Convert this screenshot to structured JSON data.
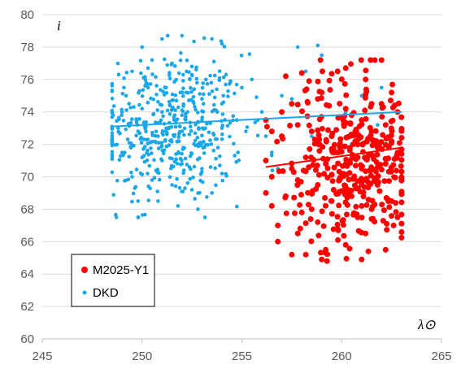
{
  "chart_data": {
    "type": "scatter",
    "xlabel": "λ⊙",
    "ylabel": "i",
    "xlim": [
      245,
      265
    ],
    "ylim": [
      60,
      80
    ],
    "x_ticks": [
      "245",
      "250",
      "255",
      "260",
      "265"
    ],
    "y_ticks": [
      "60",
      "62",
      "64",
      "66",
      "68",
      "70",
      "72",
      "74",
      "76",
      "78",
      "80"
    ],
    "grid": "horizontal",
    "legend_position": "bottom-left",
    "series": [
      {
        "name": "M2025-Y1",
        "color": "#ff0000",
        "marker": "circle-large",
        "x_range": [
          256,
          263
        ],
        "y_range": [
          64.8,
          77.2
        ],
        "center": [
          260.5,
          71.0
        ],
        "count": 420,
        "trend": {
          "x": [
            256.2,
            263.0
          ],
          "y": [
            70.6,
            71.8
          ]
        },
        "points": [
          [
            262.0,
            77.2
          ],
          [
            259.8,
            76.5
          ],
          [
            258.0,
            76.4
          ],
          [
            257.2,
            76.2
          ],
          [
            260.2,
            76.7
          ],
          [
            259.0,
            75.2
          ],
          [
            261.2,
            76.0
          ],
          [
            262.5,
            75.2
          ],
          [
            260.5,
            73.8
          ],
          [
            261.0,
            73.5
          ],
          [
            262.0,
            74.5
          ],
          [
            262.8,
            74.0
          ],
          [
            261.5,
            72.8
          ],
          [
            260.8,
            72.0
          ],
          [
            259.5,
            72.5
          ],
          [
            258.5,
            72.8
          ],
          [
            257.8,
            73.2
          ],
          [
            257.0,
            72.5
          ],
          [
            256.5,
            72.8
          ],
          [
            256.2,
            71.0
          ],
          [
            257.5,
            70.5
          ],
          [
            258.2,
            71.2
          ],
          [
            259.2,
            70.8
          ],
          [
            260.0,
            70.2
          ],
          [
            261.0,
            70.5
          ],
          [
            262.2,
            70.8
          ],
          [
            262.8,
            71.5
          ],
          [
            261.8,
            69.5
          ],
          [
            260.5,
            68.8
          ],
          [
            259.5,
            68.5
          ],
          [
            258.5,
            68.0
          ],
          [
            257.2,
            68.8
          ],
          [
            256.5,
            68.2
          ],
          [
            256.8,
            67.0
          ],
          [
            257.8,
            66.5
          ],
          [
            258.8,
            67.2
          ],
          [
            259.8,
            66.8
          ],
          [
            260.8,
            67.5
          ],
          [
            261.5,
            68.0
          ],
          [
            262.5,
            68.5
          ],
          [
            262.8,
            67.5
          ],
          [
            261.2,
            66.5
          ],
          [
            260.2,
            65.8
          ],
          [
            259.2,
            65.5
          ],
          [
            258.2,
            65.2
          ],
          [
            257.5,
            65.2
          ],
          [
            259.0,
            64.9
          ],
          [
            261.0,
            64.9
          ],
          [
            262.2,
            65.5
          ],
          [
            256.8,
            66.0
          ],
          [
            262.5,
            72.2
          ],
          [
            261.5,
            74.5
          ],
          [
            260.2,
            74.2
          ],
          [
            258.8,
            74.8
          ],
          [
            257.5,
            74.5
          ],
          [
            257.0,
            74.0
          ],
          [
            256.2,
            73.5
          ],
          [
            262.2,
            73.2
          ],
          [
            261.8,
            71.8
          ],
          [
            260.8,
            71.2
          ],
          [
            259.8,
            71.5
          ],
          [
            258.8,
            69.5
          ],
          [
            257.8,
            69.8
          ],
          [
            256.5,
            70.0
          ],
          [
            256.2,
            69.0
          ],
          [
            263.0,
            69.0
          ],
          [
            262.6,
            67.0
          ],
          [
            261.0,
            68.2
          ],
          [
            259.6,
            69.2
          ],
          [
            258.0,
            67.8
          ]
        ]
      },
      {
        "name": "DKD",
        "color": "#1aa7e8",
        "marker": "circle-small",
        "x_range": [
          248.5,
          263
        ],
        "y_range": [
          67.5,
          78.7
        ],
        "center": [
          251.5,
          73.0
        ],
        "count": 520,
        "trend": {
          "x": [
            248.5,
            263.0
          ],
          "y": [
            73.1,
            74.0
          ]
        },
        "points": [
          [
            250.0,
            78.0
          ],
          [
            251.0,
            78.5
          ],
          [
            252.0,
            78.7
          ],
          [
            253.5,
            78.5
          ],
          [
            254.0,
            78.2
          ],
          [
            249.5,
            76.5
          ],
          [
            250.5,
            77.2
          ],
          [
            251.5,
            77.0
          ],
          [
            252.5,
            76.8
          ],
          [
            253.2,
            76.0
          ],
          [
            249.2,
            75.0
          ],
          [
            250.2,
            75.8
          ],
          [
            251.2,
            75.5
          ],
          [
            252.2,
            75.2
          ],
          [
            253.0,
            74.8
          ],
          [
            254.0,
            74.5
          ],
          [
            255.0,
            75.5
          ],
          [
            249.0,
            74.0
          ],
          [
            250.0,
            74.2
          ],
          [
            251.0,
            74.0
          ],
          [
            252.0,
            73.8
          ],
          [
            253.0,
            73.5
          ],
          [
            254.0,
            73.0
          ],
          [
            255.2,
            72.8
          ],
          [
            248.8,
            73.0
          ],
          [
            249.8,
            72.8
          ],
          [
            250.8,
            72.5
          ],
          [
            251.8,
            72.2
          ],
          [
            252.8,
            72.0
          ],
          [
            253.8,
            71.8
          ],
          [
            254.8,
            71.5
          ],
          [
            249.0,
            71.5
          ],
          [
            250.0,
            71.2
          ],
          [
            251.0,
            71.0
          ],
          [
            252.0,
            70.8
          ],
          [
            253.0,
            70.5
          ],
          [
            254.0,
            70.2
          ],
          [
            249.5,
            70.0
          ],
          [
            250.5,
            69.8
          ],
          [
            251.5,
            69.5
          ],
          [
            252.5,
            69.2
          ],
          [
            253.5,
            69.0
          ],
          [
            249.8,
            68.5
          ],
          [
            250.8,
            68.5
          ],
          [
            251.8,
            68.2
          ],
          [
            252.8,
            68.0
          ],
          [
            249.8,
            67.5
          ],
          [
            256.0,
            74.0
          ],
          [
            256.5,
            71.5
          ],
          [
            257.0,
            75.0
          ],
          [
            258.2,
            76.5
          ],
          [
            259.0,
            77.5
          ],
          [
            260.2,
            74.0
          ],
          [
            261.0,
            75.0
          ],
          [
            262.0,
            75.5
          ],
          [
            257.5,
            74.8
          ],
          [
            258.5,
            72.5
          ],
          [
            260.5,
            72.0
          ],
          [
            261.8,
            73.2
          ],
          [
            256.8,
            70.5
          ],
          [
            257.8,
            78.0
          ],
          [
            258.8,
            78.1
          ],
          [
            255.5,
            76.0
          ],
          [
            255.8,
            73.5
          ],
          [
            256.2,
            72.5
          ]
        ]
      }
    ]
  }
}
